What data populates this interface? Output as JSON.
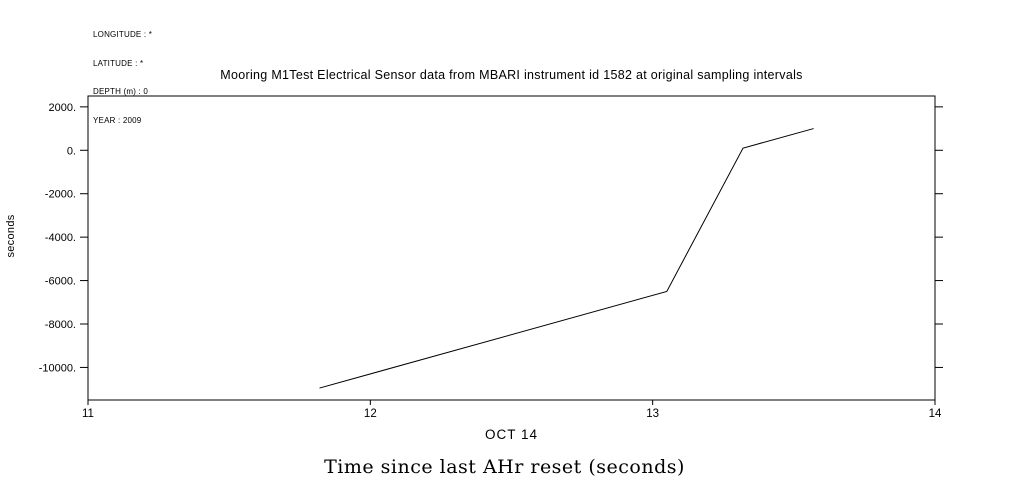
{
  "metadata": {
    "lines": [
      "LONGITUDE : *",
      "LATITUDE : *",
      "DEPTH (m) : 0",
      "YEAR : 2009"
    ]
  },
  "chart_data": {
    "type": "line",
    "title": "Mooring M1Test Electrical Sensor data from MBARI instrument id 1582 at original sampling intervals",
    "xlabel": "OCT 14",
    "ylabel": "seconds",
    "caption": "Time since last AHr reset (seconds)",
    "xlim": [
      11,
      14
    ],
    "ylim": [
      -11500,
      2500
    ],
    "xticks": [
      11,
      12,
      13,
      14
    ],
    "xtick_labels": [
      "11",
      "12",
      "13",
      "14"
    ],
    "yticks": [
      2000,
      0,
      -2000,
      -4000,
      -6000,
      -8000,
      -10000
    ],
    "ytick_labels": [
      "2000.",
      "0.",
      "-2000.",
      "-4000.",
      "-6000.",
      "-8000.",
      "-10000."
    ],
    "series": [
      {
        "name": "time-since-last-AHr-reset",
        "x": [
          11.82,
          13.05,
          13.32,
          13.57
        ],
        "y": [
          -10950,
          -6500,
          100,
          1000
        ]
      }
    ],
    "line_color": "#000000",
    "grid": false,
    "legend": "none"
  }
}
